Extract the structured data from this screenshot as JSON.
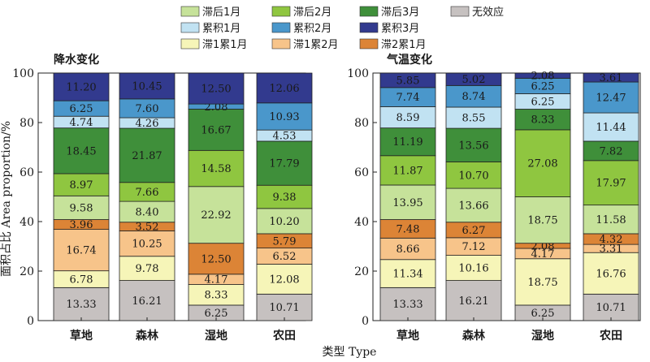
{
  "colors": {
    "zhihou1": "#c6e29a",
    "zhihou2": "#8fc640",
    "zhihou3": "#3f8f3a",
    "leiji1": "#c1e2f2",
    "leiji2": "#4a97cb",
    "leiji3": "#323a8e",
    "wuxiaoying": "#c6c1c0",
    "zhi1lei1": "#f6f5b8",
    "zhi1lei2": "#f7c48a",
    "zhi2lei1": "#dc8436"
  },
  "legend": [
    {
      "key": "zhihou1",
      "label": "滞后1月"
    },
    {
      "key": "zhihou2",
      "label": "滞后2月"
    },
    {
      "key": "zhihou3",
      "label": "滞后3月"
    },
    {
      "key": "wuxiaoying",
      "label": "无效应"
    },
    {
      "key": "leiji1",
      "label": "累积1月"
    },
    {
      "key": "leiji2",
      "label": "累积2月"
    },
    {
      "key": "leiji3",
      "label": "累积3月"
    },
    {
      "key": "zhi1lei1",
      "label": "滞1累1月"
    },
    {
      "key": "zhi1lei2",
      "label": "滞1累2月"
    },
    {
      "key": "zhi2lei1",
      "label": "滞2累1月"
    }
  ],
  "y_axis_label": "面积占比 Area proportion/%",
  "x_axis_label": "类型 Type",
  "chart_data": [
    {
      "type": "bar",
      "stacked": true,
      "title": "降水变化",
      "categories": [
        "草地",
        "森林",
        "湿地",
        "农田"
      ],
      "ylim": [
        0,
        100
      ],
      "yticks": [
        0,
        20,
        40,
        60,
        80,
        100
      ],
      "series": [
        {
          "key": "wuxiaoying",
          "name": "无效应",
          "values": [
            13.33,
            16.21,
            6.25,
            10.71
          ]
        },
        {
          "key": "zhi1lei1",
          "name": "滞1累1月",
          "values": [
            6.78,
            9.78,
            8.33,
            12.08
          ]
        },
        {
          "key": "zhi1lei2",
          "name": "滞1累2月",
          "values": [
            16.74,
            10.25,
            4.17,
            6.52
          ]
        },
        {
          "key": "zhi2lei1",
          "name": "滞2累1月",
          "values": [
            3.96,
            3.52,
            12.5,
            5.79
          ]
        },
        {
          "key": "zhihou1",
          "name": "滞后1月",
          "values": [
            9.58,
            8.4,
            22.92,
            10.2
          ]
        },
        {
          "key": "zhihou2",
          "name": "滞后2月",
          "values": [
            8.97,
            7.66,
            14.58,
            9.38
          ]
        },
        {
          "key": "zhihou3",
          "name": "滞后3月",
          "values": [
            18.45,
            21.87,
            16.67,
            17.79
          ]
        },
        {
          "key": "leiji1",
          "name": "累积1月",
          "values": [
            4.74,
            4.26,
            null,
            4.53
          ]
        },
        {
          "key": "leiji2",
          "name": "累积2月",
          "values": [
            6.25,
            7.6,
            2.08,
            10.93
          ]
        },
        {
          "key": "leiji3",
          "name": "累积3月",
          "values": [
            11.2,
            10.45,
            12.5,
            12.06
          ]
        }
      ]
    },
    {
      "type": "bar",
      "stacked": true,
      "title": "气温变化",
      "categories": [
        "草地",
        "森林",
        "湿地",
        "农田"
      ],
      "ylim": [
        0,
        100
      ],
      "yticks": [
        0,
        20,
        40,
        60,
        80,
        100
      ],
      "series": [
        {
          "key": "wuxiaoying",
          "name": "无效应",
          "values": [
            13.33,
            16.21,
            6.25,
            10.71
          ]
        },
        {
          "key": "zhi1lei1",
          "name": "滞1累1月",
          "values": [
            11.34,
            10.16,
            18.75,
            16.76
          ]
        },
        {
          "key": "zhi1lei2",
          "name": "滞1累2月",
          "values": [
            8.66,
            7.12,
            4.17,
            3.31
          ]
        },
        {
          "key": "zhi2lei1",
          "name": "滞2累1月",
          "values": [
            7.48,
            6.27,
            2.08,
            4.32
          ]
        },
        {
          "key": "zhihou1",
          "name": "滞后1月",
          "values": [
            13.95,
            13.66,
            18.75,
            11.58
          ]
        },
        {
          "key": "zhihou2",
          "name": "滞后2月",
          "values": [
            11.87,
            10.7,
            27.08,
            17.97
          ]
        },
        {
          "key": "zhihou3",
          "name": "滞后3月",
          "values": [
            11.19,
            13.56,
            8.33,
            7.82
          ]
        },
        {
          "key": "leiji1",
          "name": "累积1月",
          "values": [
            8.59,
            8.55,
            6.25,
            11.44
          ]
        },
        {
          "key": "leiji2",
          "name": "累积2月",
          "values": [
            7.74,
            8.74,
            6.25,
            12.47
          ]
        },
        {
          "key": "leiji3",
          "name": "累积3月",
          "values": [
            5.85,
            5.02,
            2.08,
            3.61
          ]
        }
      ]
    }
  ]
}
